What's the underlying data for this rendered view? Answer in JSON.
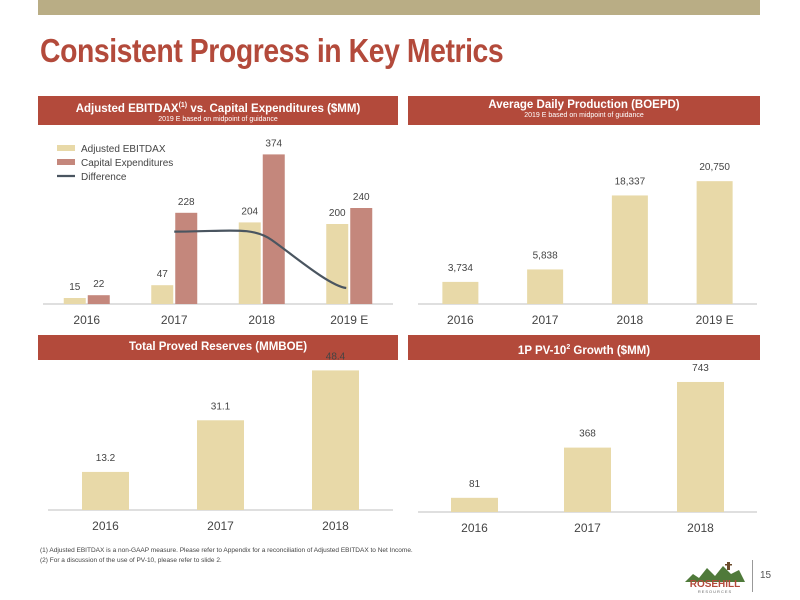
{
  "title": "Consistent Progress in Key Metrics",
  "panels": {
    "p1": {
      "title": "Adjusted EBITDAX",
      "sup": "(1)",
      "title_rest": " vs. Capital Expenditures ($MM)",
      "subtitle": "2019 E based on midpoint of guidance"
    },
    "p2": {
      "title": "Average Daily Production (BOEPD)",
      "subtitle": "2019 E based on midpoint of guidance"
    },
    "p3": {
      "title": "Total Proved Reserves (MMBOE)"
    },
    "p4": {
      "title": "1P PV-10",
      "sup": "2",
      "title_rest": " Growth ($MM)"
    }
  },
  "colors": {
    "accent": "#b34a3b",
    "bar_light": "#e8d9a8",
    "bar_rose": "#c4877c",
    "line": "#4a5560",
    "topbar": "#b9ad85"
  },
  "chart_data": [
    {
      "type": "bar",
      "categories": [
        "2016",
        "2017",
        "2018",
        "2019 E"
      ],
      "series": [
        {
          "name": "Adjusted EBITDAX",
          "values": [
            15,
            47,
            204,
            200
          ],
          "labels": [
            "15",
            "47",
            "204",
            "200"
          ]
        },
        {
          "name": "Capital Expenditures",
          "values": [
            22,
            228,
            374,
            240
          ],
          "labels": [
            "22",
            "228",
            "374",
            "240"
          ]
        }
      ],
      "line_series": {
        "name": "Difference"
      },
      "legend_position": "top-left",
      "ylim": [
        0,
        400
      ]
    },
    {
      "type": "bar",
      "categories": [
        "2016",
        "2017",
        "2018",
        "2019 E"
      ],
      "values": [
        3734,
        5838,
        18337,
        20750
      ],
      "labels": [
        "3,734",
        "5,838",
        "18,337",
        "20,750"
      ],
      "ylim": [
        0,
        25000
      ]
    },
    {
      "type": "bar",
      "categories": [
        "2016",
        "2017",
        "2018"
      ],
      "values": [
        13.2,
        31.1,
        48.4
      ],
      "labels": [
        "13.2",
        "31.1",
        "48.4"
      ],
      "ylim": [
        0,
        52
      ]
    },
    {
      "type": "bar",
      "categories": [
        "2016",
        "2017",
        "2018"
      ],
      "values": [
        81,
        368,
        743
      ],
      "labels": [
        "81",
        "368",
        "743"
      ],
      "ylim": [
        0,
        800
      ]
    }
  ],
  "footnotes": [
    "(1) Adjusted EBITDAX is a non-GAAP measure. Please refer to Appendix for a reconciliation of Adjusted EBITDAX to Net Income.",
    "(2) For a discussion of the use of PV-10, please refer to slide 2."
  ],
  "logo": {
    "name": "ROSEHILL",
    "sub": "RESOURCES"
  },
  "page_number": "15"
}
